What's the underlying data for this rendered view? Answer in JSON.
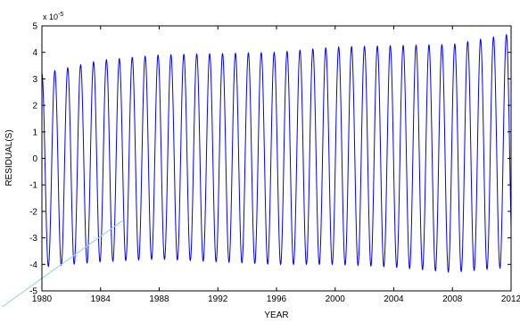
{
  "chart_data": {
    "type": "line",
    "title": "",
    "xlabel": "YEAR",
    "ylabel": "RESIDUAL(S)",
    "y_scale_factor": "x 10",
    "y_scale_exponent": "-5",
    "xlim": [
      1980,
      2012
    ],
    "ylim": [
      -5,
      5
    ],
    "grid": false,
    "legend": "none",
    "x_ticks": [
      1980,
      1984,
      1988,
      1992,
      1996,
      2000,
      2004,
      2008,
      2012
    ],
    "x_tick_labels": [
      "1980",
      "1984",
      "1988",
      "1992",
      "1996",
      "2000",
      "2004",
      "2008",
      "2012"
    ],
    "y_ticks": [
      -5,
      -4,
      -3,
      -2,
      -1,
      0,
      1,
      2,
      3,
      4,
      5
    ],
    "y_tick_labels": [
      "-5",
      "-4",
      "-3",
      "-2",
      "-1",
      "0",
      "1",
      "2",
      "3",
      "4",
      "5"
    ],
    "series": [
      {
        "color": "#0000ff",
        "period_years": 0.88,
        "amplitude_envelope": {
          "year": [
            1980,
            1984,
            1988,
            1992,
            1996,
            2000,
            2004,
            2008,
            2012
          ],
          "max": [
            3.2,
            3.7,
            3.9,
            3.95,
            4.0,
            4.2,
            4.25,
            4.3,
            4.7
          ],
          "min": [
            -4.1,
            -3.9,
            -3.8,
            -3.9,
            -4.0,
            -4.0,
            -4.1,
            -4.3,
            -4.1
          ]
        }
      }
    ],
    "annotations": [
      {
        "type": "line",
        "color": "#9fd3e6",
        "x": [
          1977.3,
          1985.5
        ],
        "y": [
          -5.6,
          -2.35
        ]
      }
    ]
  }
}
